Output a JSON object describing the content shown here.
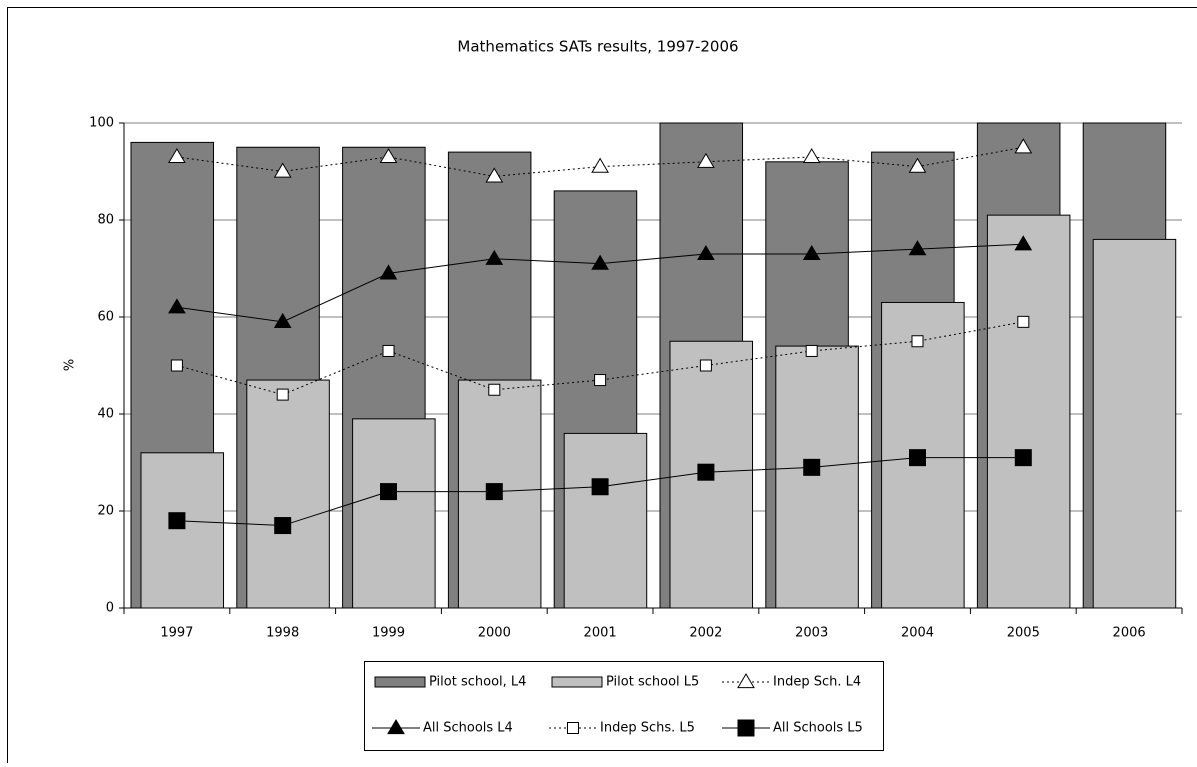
{
  "chart_data": {
    "type": "bar",
    "title": "Mathematics SATs results, 1997-2006",
    "y_label": "%",
    "categories": [
      "1997",
      "1998",
      "1999",
      "2000",
      "2001",
      "2002",
      "2003",
      "2004",
      "2005",
      "2006"
    ],
    "ylim": [
      0,
      100
    ],
    "yticks": [
      0,
      20,
      40,
      60,
      80,
      100
    ],
    "grid": true,
    "legend": "bottom",
    "series": [
      {
        "name": "Pilot school, L4",
        "type": "bar",
        "color": "#808080",
        "values": [
          96,
          95,
          95,
          94,
          86,
          100,
          92,
          94,
          100,
          100
        ]
      },
      {
        "name": "Pilot school L5",
        "type": "bar",
        "color": "#c0c0c0",
        "values": [
          32,
          47,
          39,
          47,
          36,
          55,
          54,
          63,
          81,
          76
        ]
      },
      {
        "name": "Indep Sch. L4",
        "type": "line",
        "color": "#000000",
        "dash": "dotted",
        "marker": "triangle-open",
        "values": [
          93,
          90,
          93,
          89,
          91,
          92,
          93,
          91,
          95,
          null
        ]
      },
      {
        "name": "All Schools L4",
        "type": "line",
        "color": "#000000",
        "dash": "solid",
        "marker": "triangle",
        "values": [
          62,
          59,
          69,
          72,
          71,
          73,
          73,
          74,
          75,
          null
        ]
      },
      {
        "name": "Indep Schs. L5",
        "type": "line",
        "color": "#000000",
        "dash": "dotted",
        "marker": "square-open",
        "values": [
          50,
          44,
          53,
          45,
          47,
          50,
          53,
          55,
          59,
          null
        ]
      },
      {
        "name": "All Schools L5",
        "type": "line",
        "color": "#000000",
        "dash": "solid",
        "marker": "square",
        "values": [
          18,
          17,
          24,
          24,
          25,
          28,
          29,
          31,
          31,
          null
        ]
      }
    ]
  }
}
